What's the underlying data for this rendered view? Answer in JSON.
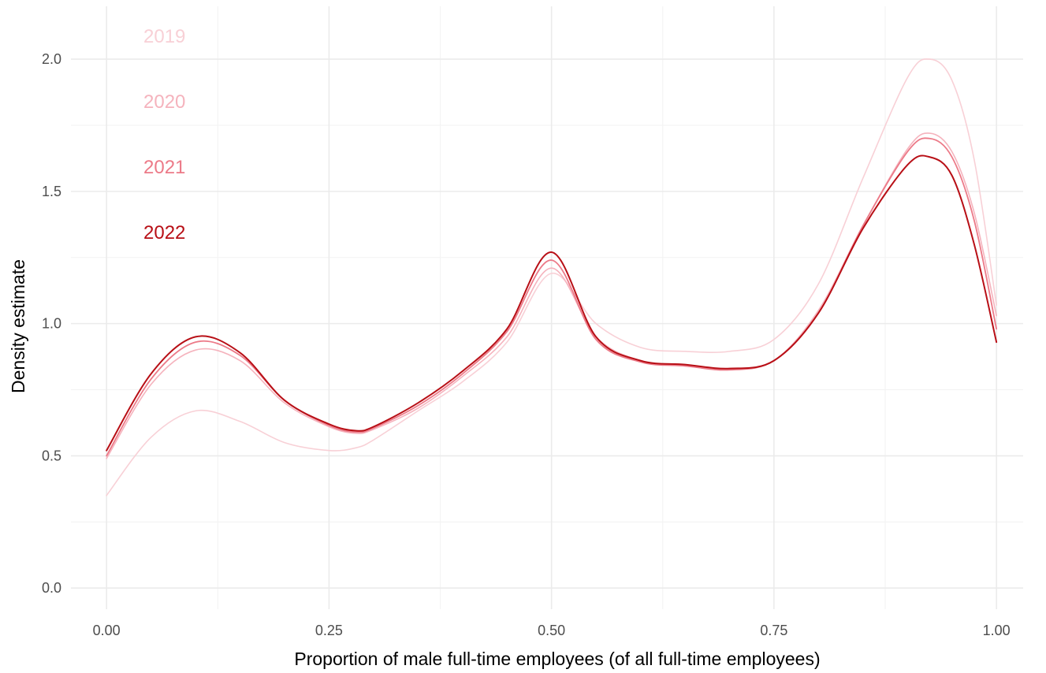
{
  "chart_data": {
    "type": "line",
    "title": "",
    "xlabel": "Proportion of male full-time employees (of all full-time employees)",
    "ylabel": "Density estimate",
    "xlim": [
      -0.04,
      1.03
    ],
    "ylim": [
      -0.08,
      2.2
    ],
    "grid": true,
    "legend_placement": "top-left",
    "x_ticks": [
      {
        "value": 0.0,
        "label": "0.00"
      },
      {
        "value": 0.25,
        "label": "0.25"
      },
      {
        "value": 0.5,
        "label": "0.50"
      },
      {
        "value": 0.75,
        "label": "0.75"
      },
      {
        "value": 1.0,
        "label": "1.00"
      }
    ],
    "y_ticks": [
      {
        "value": 0.0,
        "label": "0.0"
      },
      {
        "value": 0.5,
        "label": "0.5"
      },
      {
        "value": 1.0,
        "label": "1.0"
      },
      {
        "value": 1.5,
        "label": "1.5"
      },
      {
        "value": 2.0,
        "label": "2.0"
      }
    ],
    "x": [
      0.0,
      0.05,
      0.1,
      0.15,
      0.2,
      0.25,
      0.28,
      0.3,
      0.35,
      0.4,
      0.45,
      0.5,
      0.55,
      0.6,
      0.65,
      0.7,
      0.75,
      0.8,
      0.85,
      0.9,
      0.925,
      0.95,
      0.975,
      1.0
    ],
    "series": [
      {
        "name": "2019",
        "color": "#f8d0d6",
        "stroke_width": 1.6,
        "values": [
          0.35,
          0.57,
          0.67,
          0.63,
          0.55,
          0.52,
          0.53,
          0.56,
          0.67,
          0.78,
          0.93,
          1.19,
          1.0,
          0.91,
          0.895,
          0.895,
          0.94,
          1.15,
          1.55,
          1.93,
          2.0,
          1.92,
          1.62,
          1.07
        ]
      },
      {
        "name": "2020",
        "color": "#f5b3bd",
        "stroke_width": 1.6,
        "values": [
          0.49,
          0.77,
          0.9,
          0.86,
          0.7,
          0.61,
          0.585,
          0.6,
          0.68,
          0.8,
          0.95,
          1.21,
          0.95,
          0.86,
          0.84,
          0.83,
          0.86,
          1.05,
          1.37,
          1.66,
          1.72,
          1.65,
          1.42,
          1.03
        ]
      },
      {
        "name": "2021",
        "color": "#ec7a88",
        "stroke_width": 1.8,
        "values": [
          0.5,
          0.79,
          0.93,
          0.88,
          0.71,
          0.615,
          0.59,
          0.605,
          0.69,
          0.81,
          0.97,
          1.24,
          0.94,
          0.855,
          0.84,
          0.825,
          0.86,
          1.04,
          1.37,
          1.65,
          1.7,
          1.63,
          1.39,
          0.98
        ]
      },
      {
        "name": "2022",
        "color": "#b80f16",
        "stroke_width": 2.0,
        "values": [
          0.52,
          0.81,
          0.95,
          0.89,
          0.71,
          0.62,
          0.595,
          0.61,
          0.7,
          0.82,
          0.98,
          1.27,
          0.95,
          0.86,
          0.845,
          0.83,
          0.86,
          1.04,
          1.36,
          1.6,
          1.63,
          1.56,
          1.3,
          0.93
        ]
      }
    ]
  }
}
